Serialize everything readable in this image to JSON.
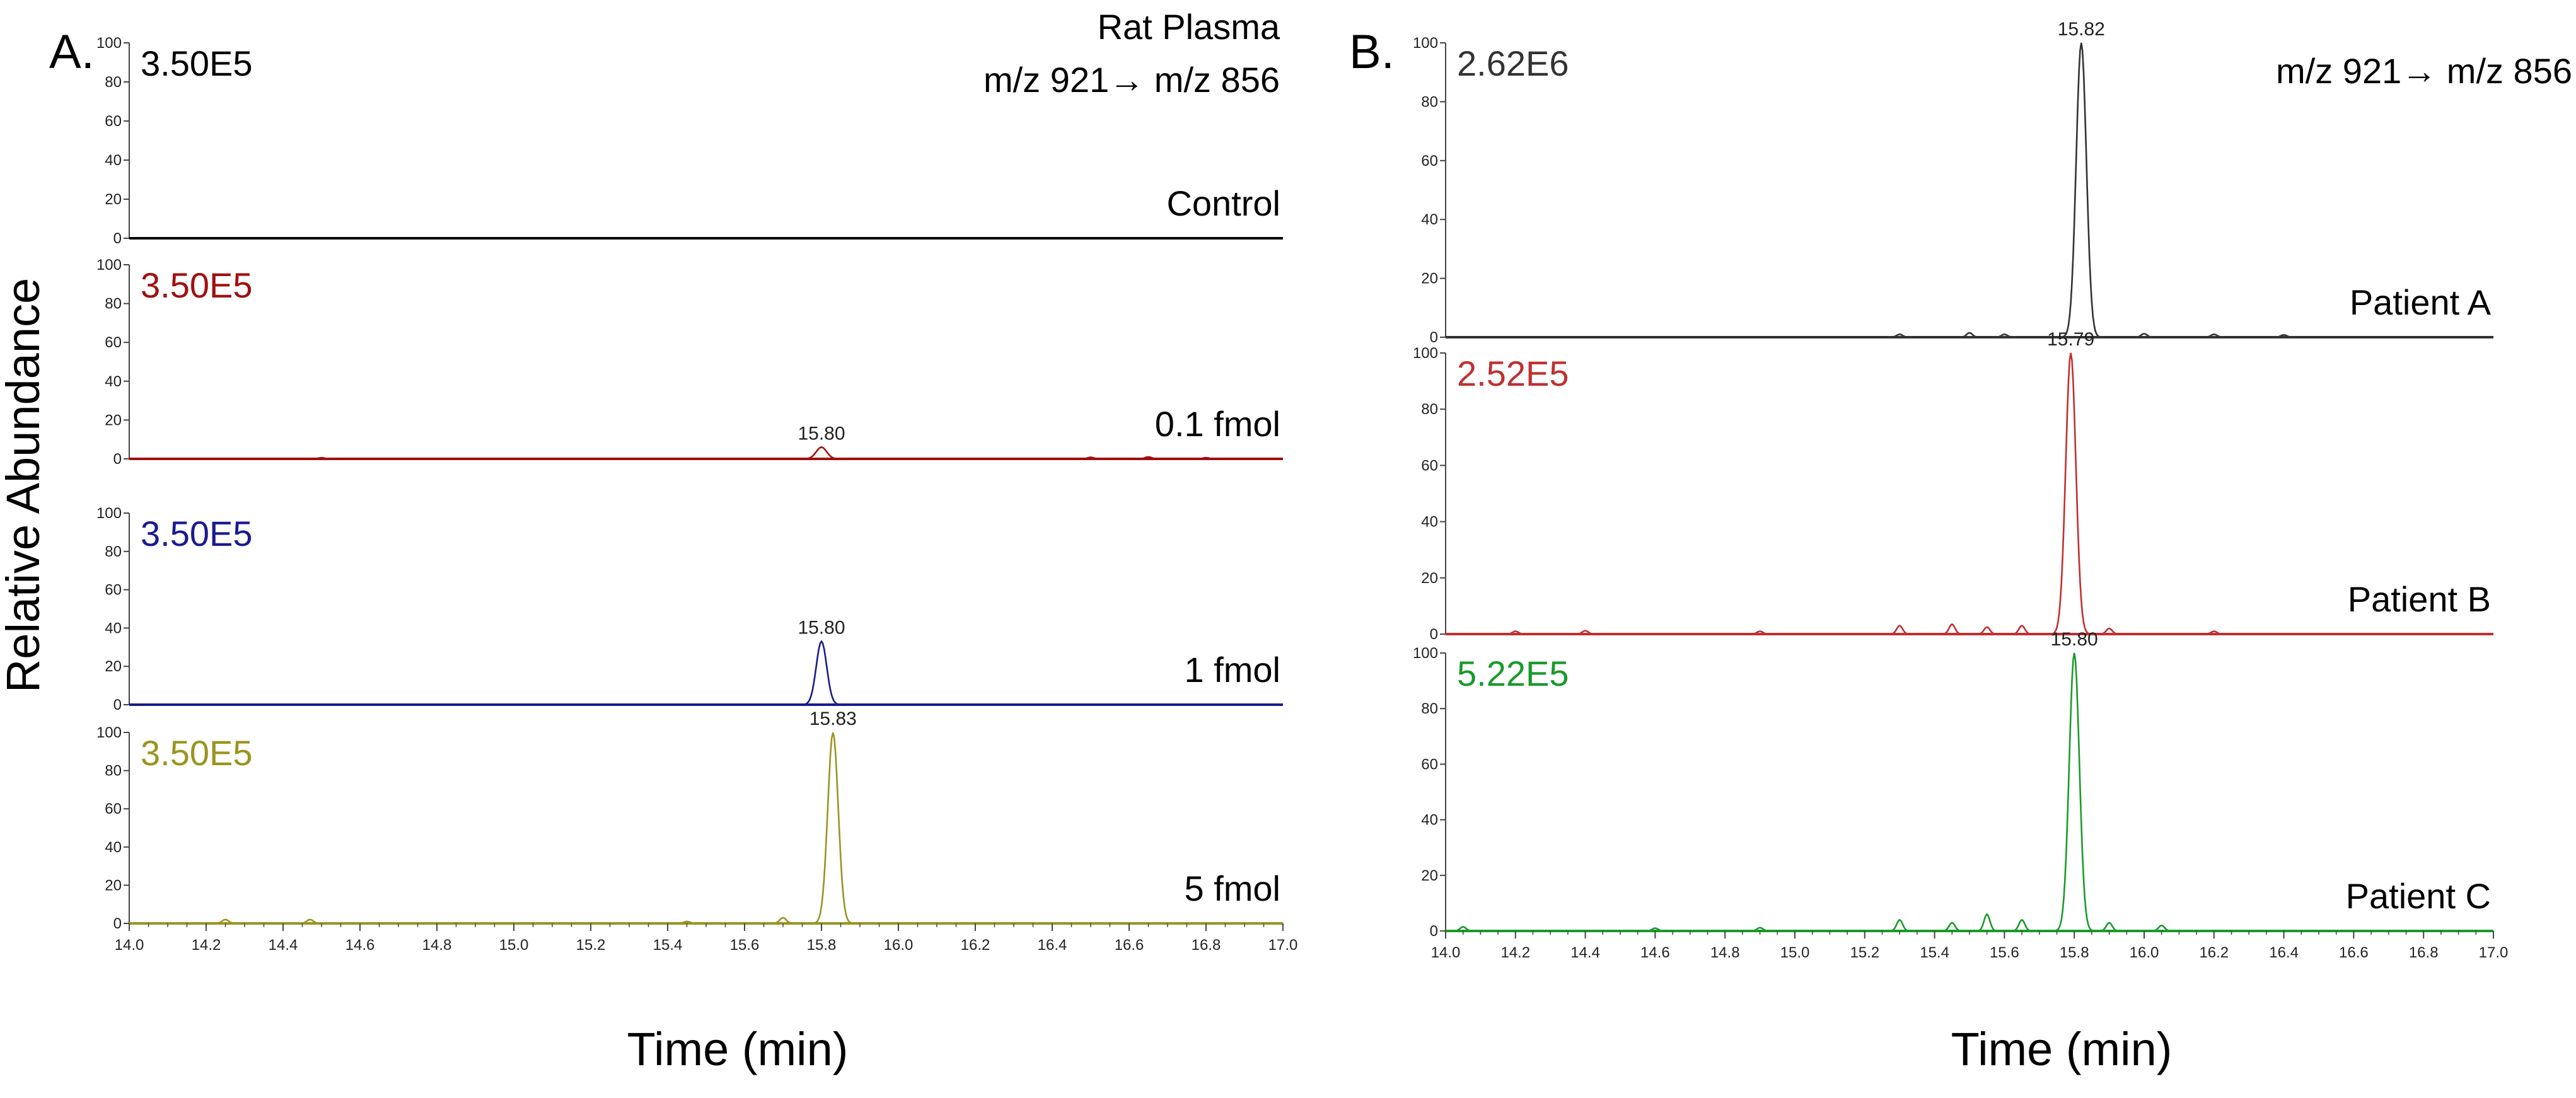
{
  "figure": {
    "ylabel": "Relative Abundance",
    "xlabel": "Time (min)",
    "xlim": [
      14.0,
      17.0
    ],
    "xticks": [
      "14.0",
      "14.2",
      "14.4",
      "14.6",
      "14.8",
      "15.0",
      "15.2",
      "15.4",
      "15.6",
      "15.8",
      "16.0",
      "16.2",
      "16.4",
      "16.6",
      "16.8",
      "17.0"
    ],
    "yticks": [
      "0",
      "20",
      "40",
      "60",
      "80",
      "100"
    ]
  },
  "chart_data": [
    {
      "type": "line",
      "panel": "A.",
      "header_lines": [
        "Rat Plasma",
        "m/z 921→ m/z 856"
      ],
      "xlabel": "Time (min)",
      "ylabel": "Relative Abundance",
      "xlim": [
        14.0,
        17.0
      ],
      "ylim": [
        0,
        100
      ],
      "series": [
        {
          "name": "Control",
          "scale": "3.50E5",
          "color": "#000000",
          "peak_x": null,
          "peak_label": null,
          "peak_height": 0,
          "peak_width": 0.035,
          "noise": []
        },
        {
          "name": "0.1 fmol",
          "scale": "3.50E5",
          "color": "#a01010",
          "peak_x": 15.8,
          "peak_label": "15.80",
          "peak_height": 6,
          "peak_width": 0.03,
          "noise": [
            [
              14.5,
              0.6
            ],
            [
              16.5,
              0.8
            ],
            [
              16.65,
              1.0
            ],
            [
              16.8,
              0.6
            ]
          ]
        },
        {
          "name": "1 fmol",
          "scale": "3.50E5",
          "color": "#1a1a90",
          "peak_x": 15.8,
          "peak_label": "15.80",
          "peak_height": 33,
          "peak_width": 0.03,
          "noise": []
        },
        {
          "name": "5 fmol",
          "scale": "3.50E5",
          "color": "#9a9420",
          "peak_x": 15.83,
          "peak_label": "15.83",
          "peak_height": 100,
          "peak_width": 0.03,
          "noise": [
            [
              14.25,
              2.0
            ],
            [
              14.47,
              2.0
            ],
            [
              15.45,
              1.0
            ],
            [
              15.7,
              3.0
            ]
          ]
        }
      ]
    },
    {
      "type": "line",
      "panel": "B.",
      "header_lines": [
        "m/z 921→ m/z 856"
      ],
      "xlabel": "Time (min)",
      "ylabel": "",
      "xlim": [
        14.0,
        17.0
      ],
      "ylim": [
        0,
        100
      ],
      "series": [
        {
          "name": "Patient A",
          "scale": "2.62E6",
          "color": "#333333",
          "peak_x": 15.82,
          "peak_label": "15.82",
          "peak_height": 100,
          "peak_width": 0.032,
          "noise": [
            [
              15.3,
              1.0
            ],
            [
              15.5,
              1.5
            ],
            [
              15.6,
              1.0
            ],
            [
              16.0,
              1.2
            ],
            [
              16.2,
              1.0
            ],
            [
              16.4,
              0.8
            ]
          ]
        },
        {
          "name": "Patient B",
          "scale": "2.52E5",
          "color": "#c03030",
          "peak_x": 15.79,
          "peak_label": "15.79",
          "peak_height": 100,
          "peak_width": 0.032,
          "noise": [
            [
              14.2,
              1.0
            ],
            [
              14.4,
              1.2
            ],
            [
              14.9,
              1.0
            ],
            [
              15.3,
              3.0
            ],
            [
              15.45,
              3.5
            ],
            [
              15.55,
              2.5
            ],
            [
              15.65,
              3.0
            ],
            [
              15.9,
              2.0
            ],
            [
              16.2,
              1.0
            ]
          ]
        },
        {
          "name": "Patient C",
          "scale": "5.22E5",
          "color": "#1a9a2a",
          "peak_x": 15.8,
          "peak_label": "15.80",
          "peak_height": 100,
          "peak_width": 0.032,
          "noise": [
            [
              14.05,
              1.5
            ],
            [
              14.6,
              1.0
            ],
            [
              14.9,
              1.2
            ],
            [
              15.3,
              4.0
            ],
            [
              15.45,
              3.0
            ],
            [
              15.55,
              6.0
            ],
            [
              15.65,
              4.0
            ],
            [
              15.9,
              3.0
            ],
            [
              16.05,
              2.0
            ]
          ]
        }
      ]
    }
  ]
}
